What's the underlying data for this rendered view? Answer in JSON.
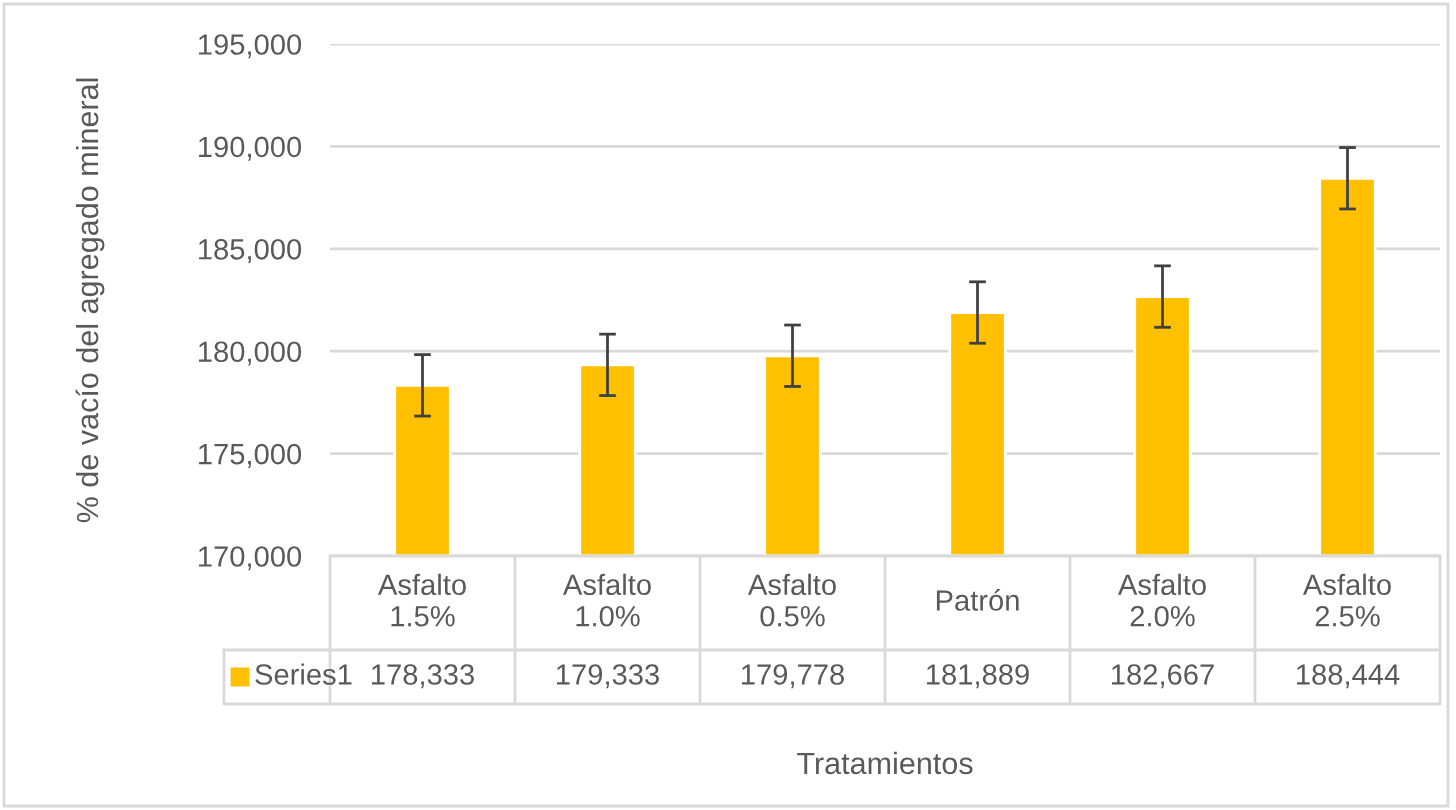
{
  "chart_data": {
    "type": "bar",
    "xlabel": "Tratamientos",
    "ylabel": "% de vacío del agregado mineral",
    "categories": [
      "Asfalto\n1.5%",
      "Asfalto\n1.0%",
      "Asfalto\n0.5%",
      "Patrón",
      "Asfalto\n2.0%",
      "Asfalto\n2.5%"
    ],
    "series": [
      {
        "name": "Series1",
        "color": "#ffc000",
        "values": [
          178333,
          179333,
          179778,
          181889,
          182667,
          188444
        ],
        "errors": [
          1500,
          1500,
          1500,
          1500,
          1500,
          1500
        ],
        "value_labels": [
          "178,333",
          "179,333",
          "179,778",
          "181,889",
          "182,667",
          "188,444"
        ]
      }
    ],
    "ylim": [
      170000,
      195000
    ],
    "yticks": [
      {
        "value": 170000,
        "label": "170,000"
      },
      {
        "value": 175000,
        "label": "175,000"
      },
      {
        "value": 180000,
        "label": "180,000"
      },
      {
        "value": 185000,
        "label": "185,000"
      },
      {
        "value": 190000,
        "label": "190,000"
      },
      {
        "value": 195000,
        "label": "195,000"
      }
    ],
    "grid": "y",
    "legend": "bottom"
  }
}
